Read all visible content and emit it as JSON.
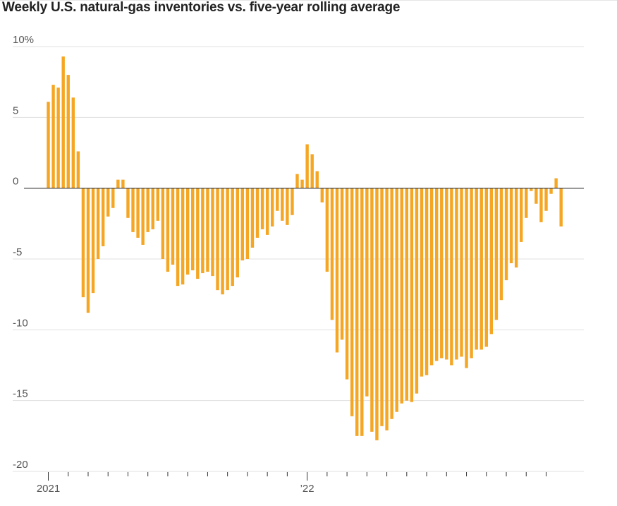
{
  "chart_data": {
    "type": "bar",
    "title": "Weekly U.S. natural-gas inventories vs. five-year rolling average",
    "xlabel": "",
    "ylabel": "",
    "ylim": [
      -20,
      10
    ],
    "yticks": [
      {
        "value": 10,
        "label": "10%"
      },
      {
        "value": 5,
        "label": "5"
      },
      {
        "value": 0,
        "label": "0"
      },
      {
        "value": -5,
        "label": "-5"
      },
      {
        "value": -10,
        "label": "-10"
      },
      {
        "value": -15,
        "label": "-15"
      },
      {
        "value": -20,
        "label": "-20"
      }
    ],
    "xtick_labels": [
      {
        "label": "2021",
        "index": 0
      },
      {
        "label": "’22",
        "index": 52
      }
    ],
    "minor_tick_every": 4,
    "grid": true,
    "bar_color": "#f5a623",
    "values": [
      6.1,
      7.3,
      7.1,
      9.3,
      8.0,
      6.4,
      2.6,
      -7.7,
      -8.8,
      -7.4,
      -5.0,
      -4.1,
      -2.0,
      -1.4,
      0.6,
      0.6,
      -2.1,
      -3.1,
      -3.5,
      -4.0,
      -3.1,
      -2.9,
      -2.3,
      -5.0,
      -5.9,
      -5.4,
      -6.9,
      -6.8,
      -6.1,
      -5.8,
      -6.4,
      -6.0,
      -5.9,
      -6.2,
      -7.2,
      -7.5,
      -7.2,
      -6.9,
      -6.3,
      -5.1,
      -5.0,
      -4.2,
      -3.5,
      -2.9,
      -3.3,
      -2.7,
      -1.6,
      -2.3,
      -2.6,
      -1.9,
      1.0,
      0.6,
      3.1,
      2.4,
      1.2,
      -1.0,
      -5.9,
      -9.3,
      -11.6,
      -10.7,
      -13.5,
      -16.1,
      -17.5,
      -17.5,
      -14.7,
      -17.2,
      -17.8,
      -16.8,
      -17.1,
      -16.3,
      -15.8,
      -15.2,
      -15.0,
      -15.1,
      -14.5,
      -13.3,
      -13.2,
      -12.5,
      -12.2,
      -12.0,
      -12.1,
      -12.5,
      -12.1,
      -11.9,
      -12.7,
      -12.0,
      -11.4,
      -11.4,
      -11.2,
      -10.3,
      -9.3,
      -7.9,
      -6.5,
      -5.3,
      -5.6,
      -3.8,
      -2.1,
      -0.2,
      -1.1,
      -2.4,
      -1.6,
      -0.4,
      0.7,
      -2.7
    ]
  }
}
